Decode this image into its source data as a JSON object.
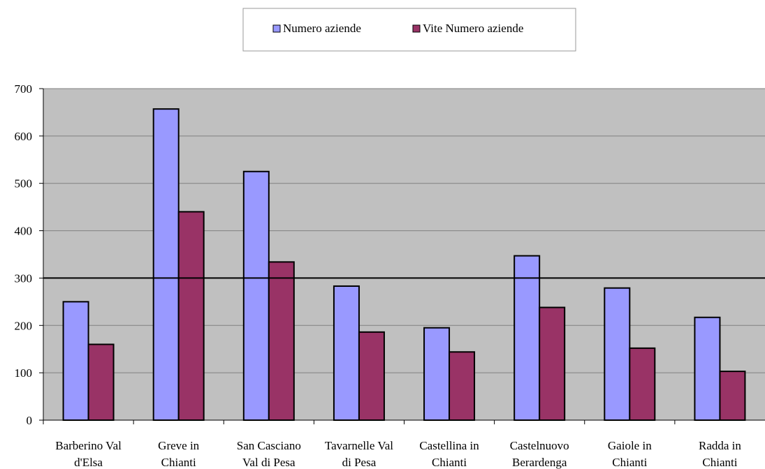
{
  "chart_data": {
    "type": "bar",
    "categories": [
      [
        "Barberino Val",
        "d'Elsa"
      ],
      [
        "Greve in",
        "Chianti"
      ],
      [
        "San Casciano",
        "Val di Pesa"
      ],
      [
        "Tavarnelle Val",
        "di Pesa"
      ],
      [
        "Castellina in",
        "Chianti"
      ],
      [
        "Castelnuovo",
        "Berardenga"
      ],
      [
        "Gaiole in",
        "Chianti"
      ],
      [
        "Radda in",
        "Chianti"
      ]
    ],
    "series": [
      {
        "name": "Numero aziende",
        "values": [
          250,
          657,
          525,
          283,
          195,
          347,
          279,
          217
        ]
      },
      {
        "name": "Vite Numero aziende",
        "values": [
          160,
          440,
          334,
          186,
          144,
          238,
          152,
          103
        ]
      }
    ],
    "ylim": [
      0,
      700
    ],
    "yticks": [
      0,
      100,
      200,
      300,
      400,
      500,
      600,
      700
    ],
    "reference_line": 300,
    "legend_position": "top-center",
    "grid": true,
    "colors": {
      "plot_background": "#c0c0c0",
      "series": [
        "#9999ff",
        "#993366"
      ],
      "gridline": "#808080",
      "axis": "#000000"
    }
  }
}
